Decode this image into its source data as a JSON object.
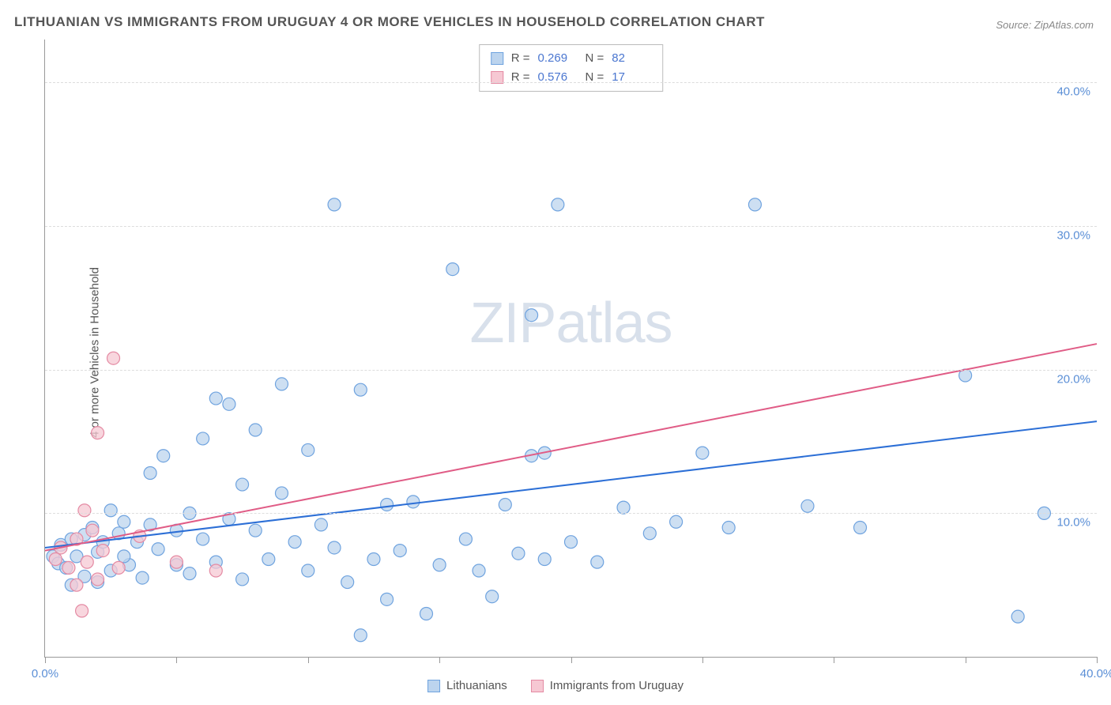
{
  "title": "LITHUANIAN VS IMMIGRANTS FROM URUGUAY 4 OR MORE VEHICLES IN HOUSEHOLD CORRELATION CHART",
  "source": "Source: ZipAtlas.com",
  "ylabel": "4 or more Vehicles in Household",
  "watermark": {
    "bold": "ZIP",
    "thin": "atlas"
  },
  "chart": {
    "type": "scatter",
    "xlim": [
      0,
      40
    ],
    "ylim": [
      0,
      43
    ],
    "xtick_positions": [
      0,
      5,
      10,
      15,
      20,
      25,
      30,
      35,
      40
    ],
    "xtick_labels": {
      "0": "0.0%",
      "40": "40.0%"
    },
    "ytick_positions": [
      10,
      20,
      30,
      40
    ],
    "ytick_labels": [
      "10.0%",
      "20.0%",
      "30.0%",
      "40.0%"
    ],
    "grid_color": "#dddddd",
    "axis_color": "#999999",
    "tick_label_color": "#5b8fd6",
    "background_color": "#ffffff",
    "marker_radius": 8,
    "marker_stroke_width": 1.2,
    "line_width": 2,
    "series": [
      {
        "name": "Lithuanians",
        "fill_color": "#bcd4ee",
        "stroke_color": "#6fa3df",
        "line_color": "#2c6fd6",
        "R": "0.269",
        "N": "82",
        "trend": {
          "x1": 0,
          "y1": 7.6,
          "x2": 40,
          "y2": 16.4
        },
        "points": [
          [
            0.3,
            7.0
          ],
          [
            0.5,
            6.5
          ],
          [
            0.6,
            7.8
          ],
          [
            0.8,
            6.2
          ],
          [
            1.0,
            8.2
          ],
          [
            1.2,
            7.0
          ],
          [
            1.5,
            8.5
          ],
          [
            1.5,
            5.6
          ],
          [
            1.8,
            9.0
          ],
          [
            2.0,
            7.3
          ],
          [
            2.2,
            8.0
          ],
          [
            2.5,
            10.2
          ],
          [
            2.5,
            6.0
          ],
          [
            2.8,
            8.6
          ],
          [
            3.0,
            9.4
          ],
          [
            3.2,
            6.4
          ],
          [
            3.5,
            8.0
          ],
          [
            3.7,
            5.5
          ],
          [
            4.0,
            9.2
          ],
          [
            4.0,
            12.8
          ],
          [
            4.3,
            7.5
          ],
          [
            4.5,
            14.0
          ],
          [
            5.0,
            8.8
          ],
          [
            5.0,
            6.4
          ],
          [
            5.5,
            10.0
          ],
          [
            5.5,
            5.8
          ],
          [
            6.0,
            8.2
          ],
          [
            6.0,
            15.2
          ],
          [
            6.5,
            18.0
          ],
          [
            6.5,
            6.6
          ],
          [
            7.0,
            9.6
          ],
          [
            7.0,
            17.6
          ],
          [
            7.5,
            12.0
          ],
          [
            7.5,
            5.4
          ],
          [
            8.0,
            8.8
          ],
          [
            8.0,
            15.8
          ],
          [
            8.5,
            6.8
          ],
          [
            9.0,
            11.4
          ],
          [
            9.0,
            19.0
          ],
          [
            9.5,
            8.0
          ],
          [
            10.0,
            6.0
          ],
          [
            10.0,
            14.4
          ],
          [
            10.5,
            9.2
          ],
          [
            11.0,
            31.5
          ],
          [
            11.0,
            7.6
          ],
          [
            11.5,
            5.2
          ],
          [
            12.0,
            18.6
          ],
          [
            12.0,
            1.5
          ],
          [
            12.5,
            6.8
          ],
          [
            13.0,
            10.6
          ],
          [
            13.0,
            4.0
          ],
          [
            13.5,
            7.4
          ],
          [
            14.0,
            10.8
          ],
          [
            14.5,
            3.0
          ],
          [
            15.0,
            6.4
          ],
          [
            15.5,
            27.0
          ],
          [
            16.0,
            8.2
          ],
          [
            16.5,
            6.0
          ],
          [
            17.0,
            4.2
          ],
          [
            17.5,
            10.6
          ],
          [
            18.0,
            7.2
          ],
          [
            18.5,
            23.8
          ],
          [
            18.5,
            14.0
          ],
          [
            19.0,
            14.2
          ],
          [
            19.0,
            6.8
          ],
          [
            19.5,
            31.5
          ],
          [
            20.0,
            8.0
          ],
          [
            21.0,
            6.6
          ],
          [
            22.0,
            10.4
          ],
          [
            23.0,
            8.6
          ],
          [
            24.0,
            9.4
          ],
          [
            25.0,
            14.2
          ],
          [
            26.0,
            9.0
          ],
          [
            27.0,
            31.5
          ],
          [
            29.0,
            10.5
          ],
          [
            31.0,
            9.0
          ],
          [
            35.0,
            19.6
          ],
          [
            37.0,
            2.8
          ],
          [
            38.0,
            10.0
          ],
          [
            1.0,
            5.0
          ],
          [
            2.0,
            5.2
          ],
          [
            3.0,
            7.0
          ]
        ]
      },
      {
        "name": "Immigrants from Uruguay",
        "fill_color": "#f6c8d3",
        "stroke_color": "#e48aa3",
        "line_color": "#e05c86",
        "R": "0.576",
        "N": "17",
        "trend": {
          "x1": 0,
          "y1": 7.4,
          "x2": 40,
          "y2": 21.8
        },
        "points": [
          [
            0.4,
            6.8
          ],
          [
            0.6,
            7.6
          ],
          [
            0.9,
            6.2
          ],
          [
            1.2,
            8.2
          ],
          [
            1.2,
            5.0
          ],
          [
            1.5,
            10.2
          ],
          [
            1.6,
            6.6
          ],
          [
            1.8,
            8.8
          ],
          [
            2.0,
            5.4
          ],
          [
            2.0,
            15.6
          ],
          [
            2.2,
            7.4
          ],
          [
            2.6,
            20.8
          ],
          [
            2.8,
            6.2
          ],
          [
            3.6,
            8.4
          ],
          [
            5.0,
            6.6
          ],
          [
            6.5,
            6.0
          ],
          [
            1.4,
            3.2
          ]
        ]
      }
    ]
  },
  "legend_bottom": [
    {
      "label": "Lithuanians",
      "fill": "#bcd4ee",
      "stroke": "#6fa3df"
    },
    {
      "label": "Immigrants from Uruguay",
      "fill": "#f6c8d3",
      "stroke": "#e48aa3"
    }
  ]
}
